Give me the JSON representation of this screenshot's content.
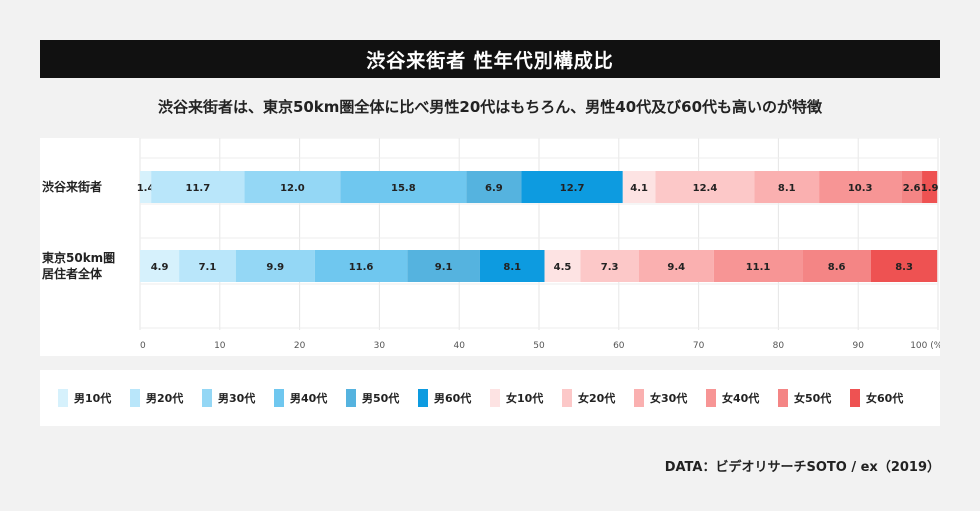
{
  "title": "渋谷来街者 性年代別構成比",
  "subtitle": "渋谷来街者は、東京50km圏全体に比べ男性20代はもちろん、男性40代及び60代も高いのが特徴",
  "source": "DATA：ビデオリサーチSOTO / ex（2019）",
  "colors": {
    "男10代": "#d6f1fc",
    "男20代": "#b9e6fa",
    "男30代": "#94d7f5",
    "男40代": "#6fc7ef",
    "男50代": "#55b3df",
    "男60代": "#0d9be0",
    "女10代": "#fde3e3",
    "女20代": "#fcc8c8",
    "女30代": "#fab0b0",
    "女40代": "#f79595",
    "女50代": "#f48585",
    "女60代": "#ee5252"
  },
  "chart_data": {
    "type": "bar",
    "orientation": "horizontal",
    "stacked": true,
    "categories": [
      "渋谷来街者",
      "東京50km圏|居住者全体"
    ],
    "series": [
      {
        "name": "男10代",
        "values": [
          1.4,
          4.9
        ]
      },
      {
        "name": "男20代",
        "values": [
          11.7,
          7.1
        ]
      },
      {
        "name": "男30代",
        "values": [
          12.0,
          9.9
        ]
      },
      {
        "name": "男40代",
        "values": [
          15.8,
          11.6
        ]
      },
      {
        "name": "男50代",
        "values": [
          6.9,
          9.1
        ]
      },
      {
        "name": "男60代",
        "values": [
          12.7,
          8.1
        ]
      },
      {
        "name": "女10代",
        "values": [
          4.1,
          4.5
        ]
      },
      {
        "name": "女20代",
        "values": [
          12.4,
          7.3
        ]
      },
      {
        "name": "女30代",
        "values": [
          8.1,
          9.4
        ]
      },
      {
        "name": "女40代",
        "values": [
          10.3,
          11.1
        ]
      },
      {
        "name": "女50代",
        "values": [
          2.6,
          8.6
        ]
      },
      {
        "name": "女60代",
        "values": [
          1.9,
          8.3
        ]
      }
    ],
    "xlim": [
      0,
      100
    ],
    "xticks": [
      0,
      10,
      20,
      30,
      40,
      50,
      60,
      70,
      80,
      90,
      100
    ],
    "xlast_tick_label": "100 (%)",
    "grid": true,
    "legend_position": "bottom"
  }
}
